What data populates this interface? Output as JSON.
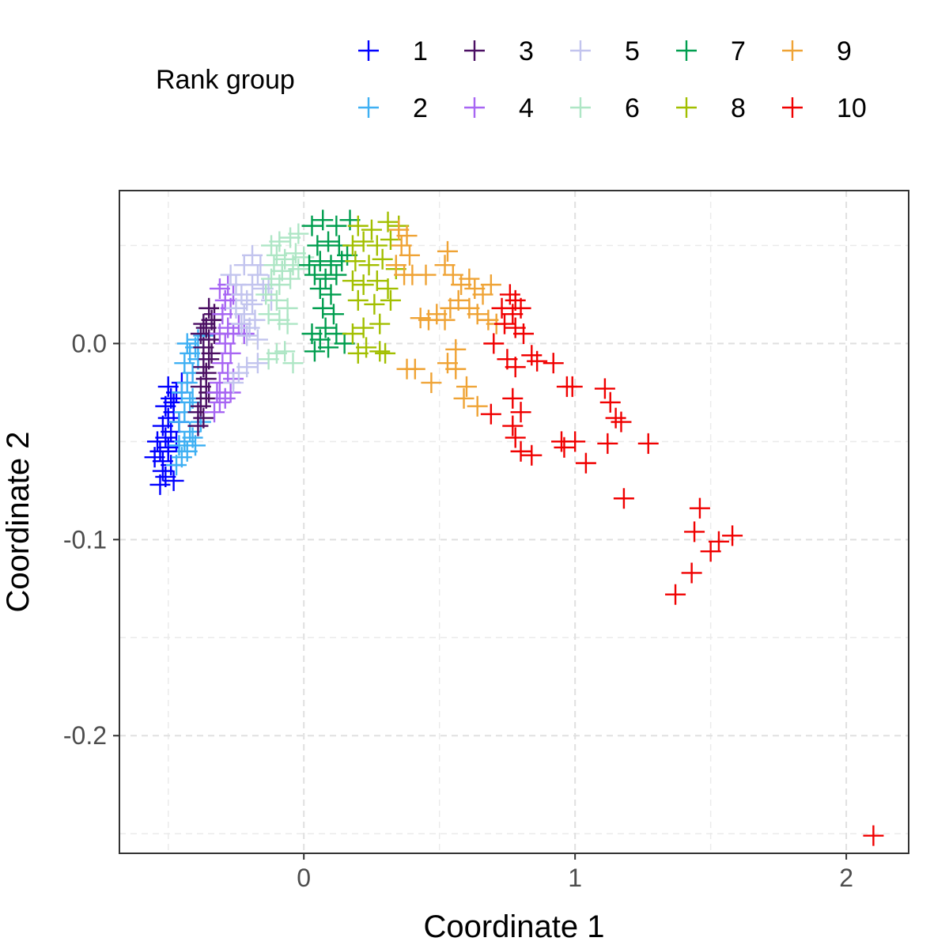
{
  "chart_data": {
    "type": "scatter",
    "xlabel": "Coordinate 1",
    "ylabel": "Coordinate 2",
    "xlim": [
      -0.68,
      2.23
    ],
    "ylim": [
      -0.26,
      0.078
    ],
    "x_ticks": [
      {
        "value": 0,
        "label": "0"
      },
      {
        "value": 1,
        "label": "1"
      },
      {
        "value": 2,
        "label": "2"
      }
    ],
    "y_ticks": [
      {
        "value": 0.0,
        "label": "0.0"
      },
      {
        "value": -0.1,
        "label": "-0.1"
      },
      {
        "value": -0.2,
        "label": "-0.2"
      }
    ],
    "grid": true,
    "marker": "plus",
    "legend": {
      "title": "Rank group",
      "position": "top"
    },
    "series": [
      {
        "name": "1",
        "color": "#0000ff",
        "points": [
          [
            -0.53,
            -0.072
          ],
          [
            -0.51,
            -0.068
          ],
          [
            -0.55,
            -0.058
          ],
          [
            -0.52,
            -0.06
          ],
          [
            -0.5,
            -0.055
          ],
          [
            -0.54,
            -0.05
          ],
          [
            -0.51,
            -0.048
          ],
          [
            -0.49,
            -0.045
          ],
          [
            -0.52,
            -0.042
          ],
          [
            -0.5,
            -0.038
          ],
          [
            -0.48,
            -0.035
          ],
          [
            -0.51,
            -0.032
          ],
          [
            -0.49,
            -0.028
          ],
          [
            -0.47,
            -0.025
          ],
          [
            -0.5,
            -0.022
          ],
          [
            -0.48,
            -0.03
          ],
          [
            -0.46,
            -0.04
          ],
          [
            -0.53,
            -0.055
          ],
          [
            -0.49,
            -0.062
          ],
          [
            -0.47,
            -0.05
          ],
          [
            -0.45,
            -0.02
          ],
          [
            -0.52,
            -0.065
          ],
          [
            -0.48,
            -0.07
          ],
          [
            -0.5,
            -0.053
          ]
        ]
      },
      {
        "name": "2",
        "color": "#3fb0f3",
        "points": [
          [
            -0.47,
            -0.062
          ],
          [
            -0.45,
            -0.058
          ],
          [
            -0.43,
            -0.055
          ],
          [
            -0.44,
            -0.05
          ],
          [
            -0.42,
            -0.045
          ],
          [
            -0.46,
            -0.04
          ],
          [
            -0.44,
            -0.035
          ],
          [
            -0.42,
            -0.03
          ],
          [
            -0.45,
            -0.025
          ],
          [
            -0.43,
            -0.02
          ],
          [
            -0.41,
            -0.015
          ],
          [
            -0.44,
            -0.01
          ],
          [
            -0.42,
            -0.005
          ],
          [
            -0.4,
            -0.002
          ],
          [
            -0.39,
            0.002
          ],
          [
            -0.43,
            0.0
          ],
          [
            -0.41,
            -0.048
          ],
          [
            -0.4,
            -0.052
          ],
          [
            -0.38,
            -0.04
          ],
          [
            -0.41,
            -0.028
          ],
          [
            -0.39,
            -0.008
          ],
          [
            -0.37,
            0.004
          ],
          [
            -0.46,
            -0.052
          ]
        ]
      },
      {
        "name": "3",
        "color": "#4b0f63",
        "points": [
          [
            -0.39,
            -0.042
          ],
          [
            -0.37,
            -0.038
          ],
          [
            -0.38,
            -0.032
          ],
          [
            -0.36,
            -0.028
          ],
          [
            -0.38,
            -0.022
          ],
          [
            -0.36,
            -0.018
          ],
          [
            -0.37,
            -0.012
          ],
          [
            -0.35,
            -0.008
          ],
          [
            -0.37,
            -0.002
          ],
          [
            -0.35,
            0.002
          ],
          [
            -0.36,
            0.008
          ],
          [
            -0.34,
            0.012
          ],
          [
            -0.35,
            0.018
          ],
          [
            -0.33,
            0.015
          ],
          [
            -0.37,
            0.01
          ],
          [
            -0.34,
            -0.005
          ],
          [
            -0.36,
            -0.015
          ],
          [
            -0.38,
            0.005
          ],
          [
            -0.33,
            0.005
          ],
          [
            -0.35,
            -0.025
          ],
          [
            -0.39,
            -0.035
          ]
        ]
      },
      {
        "name": "4",
        "color": "#a766f3",
        "points": [
          [
            -0.33,
            -0.035
          ],
          [
            -0.31,
            -0.03
          ],
          [
            -0.29,
            -0.028
          ],
          [
            -0.27,
            -0.025
          ],
          [
            -0.31,
            -0.02
          ],
          [
            -0.28,
            -0.015
          ],
          [
            -0.26,
            -0.018
          ],
          [
            -0.3,
            -0.01
          ],
          [
            -0.27,
            -0.005
          ],
          [
            -0.29,
            0.0
          ],
          [
            -0.31,
            0.005
          ],
          [
            -0.28,
            0.008
          ],
          [
            -0.26,
            0.005
          ],
          [
            -0.3,
            0.015
          ],
          [
            -0.27,
            0.018
          ],
          [
            -0.29,
            0.022
          ],
          [
            -0.31,
            0.028
          ],
          [
            -0.28,
            0.03
          ],
          [
            -0.24,
            0.01
          ],
          [
            -0.26,
            0.025
          ],
          [
            -0.22,
            0.005
          ],
          [
            -0.32,
            -0.025
          ]
        ]
      },
      {
        "name": "5",
        "color": "#c2c4ee",
        "points": [
          [
            -0.27,
            0.035
          ],
          [
            -0.25,
            0.03
          ],
          [
            -0.23,
            0.025
          ],
          [
            -0.21,
            0.022
          ],
          [
            -0.25,
            0.018
          ],
          [
            -0.22,
            0.015
          ],
          [
            -0.19,
            0.02
          ],
          [
            -0.23,
            0.01
          ],
          [
            -0.2,
            0.008
          ],
          [
            -0.18,
            0.012
          ],
          [
            -0.21,
            0.004
          ],
          [
            -0.17,
            0.002
          ],
          [
            -0.19,
            0.03
          ],
          [
            -0.17,
            0.035
          ],
          [
            -0.15,
            0.028
          ],
          [
            -0.22,
            0.04
          ],
          [
            -0.19,
            0.045
          ],
          [
            -0.16,
            0.04
          ],
          [
            -0.13,
            0.03
          ],
          [
            -0.24,
            -0.015
          ],
          [
            -0.21,
            -0.012
          ],
          [
            -0.17,
            -0.01
          ],
          [
            -0.26,
            -0.02
          ],
          [
            -0.12,
            0.022
          ]
        ]
      },
      {
        "name": "6",
        "color": "#aee6c5",
        "points": [
          [
            -0.12,
            0.05
          ],
          [
            -0.09,
            0.052
          ],
          [
            -0.05,
            0.054
          ],
          [
            -0.02,
            0.056
          ],
          [
            -0.1,
            0.045
          ],
          [
            -0.07,
            0.043
          ],
          [
            -0.03,
            0.046
          ],
          [
            -0.11,
            0.04
          ],
          [
            -0.08,
            0.037
          ],
          [
            -0.04,
            0.04
          ],
          [
            -0.12,
            0.033
          ],
          [
            -0.09,
            0.03
          ],
          [
            -0.05,
            0.033
          ],
          [
            -0.02,
            0.038
          ],
          [
            -0.14,
            0.025
          ],
          [
            -0.1,
            0.022
          ],
          [
            -0.06,
            0.018
          ],
          [
            -0.13,
            0.015
          ],
          [
            -0.09,
            0.012
          ],
          [
            -0.06,
            0.01
          ],
          [
            -0.13,
            -0.008
          ],
          [
            -0.1,
            -0.005
          ],
          [
            -0.07,
            -0.004
          ],
          [
            -0.04,
            -0.01
          ],
          [
            0.0,
            0.044
          ]
        ]
      },
      {
        "name": "7",
        "color": "#009e4f",
        "points": [
          [
            0.03,
            0.06
          ],
          [
            0.07,
            0.063
          ],
          [
            0.12,
            0.06
          ],
          [
            0.17,
            0.063
          ],
          [
            0.05,
            0.05
          ],
          [
            0.09,
            0.052
          ],
          [
            0.13,
            0.05
          ],
          [
            0.02,
            0.04
          ],
          [
            0.06,
            0.042
          ],
          [
            0.1,
            0.04
          ],
          [
            0.14,
            0.042
          ],
          [
            0.04,
            0.035
          ],
          [
            0.08,
            0.033
          ],
          [
            0.12,
            0.035
          ],
          [
            0.06,
            0.028
          ],
          [
            0.1,
            0.025
          ],
          [
            0.07,
            0.018
          ],
          [
            0.11,
            0.015
          ],
          [
            0.08,
            0.008
          ],
          [
            0.03,
            0.005
          ],
          [
            0.06,
            0.002
          ],
          [
            0.12,
            0.005
          ],
          [
            0.04,
            -0.004
          ],
          [
            0.09,
            -0.002
          ],
          [
            0.15,
            0.0
          ],
          [
            0.16,
            0.045
          ]
        ]
      },
      {
        "name": "8",
        "color": "#a2bf00",
        "points": [
          [
            0.2,
            0.06
          ],
          [
            0.25,
            0.058
          ],
          [
            0.31,
            0.062
          ],
          [
            0.35,
            0.06
          ],
          [
            0.18,
            0.05
          ],
          [
            0.22,
            0.052
          ],
          [
            0.27,
            0.05
          ],
          [
            0.32,
            0.053
          ],
          [
            0.19,
            0.042
          ],
          [
            0.24,
            0.04
          ],
          [
            0.29,
            0.043
          ],
          [
            0.34,
            0.038
          ],
          [
            0.18,
            0.032
          ],
          [
            0.22,
            0.03
          ],
          [
            0.27,
            0.032
          ],
          [
            0.31,
            0.028
          ],
          [
            0.2,
            0.022
          ],
          [
            0.26,
            0.02
          ],
          [
            0.32,
            0.022
          ],
          [
            0.28,
            0.01
          ],
          [
            0.22,
            0.008
          ],
          [
            0.18,
            0.005
          ],
          [
            0.23,
            -0.002
          ],
          [
            0.28,
            -0.004
          ],
          [
            0.3,
            -0.005
          ],
          [
            0.2,
            -0.005
          ]
        ]
      },
      {
        "name": "9",
        "color": "#efa335",
        "points": [
          [
            0.35,
            0.058
          ],
          [
            0.38,
            0.055
          ],
          [
            0.36,
            0.05
          ],
          [
            0.39,
            0.045
          ],
          [
            0.34,
            0.04
          ],
          [
            0.37,
            0.035
          ],
          [
            0.4,
            0.035
          ],
          [
            0.45,
            0.035
          ],
          [
            0.53,
            0.047
          ],
          [
            0.52,
            0.04
          ],
          [
            0.55,
            0.035
          ],
          [
            0.58,
            0.03
          ],
          [
            0.61,
            0.033
          ],
          [
            0.63,
            0.028
          ],
          [
            0.66,
            0.025
          ],
          [
            0.69,
            0.03
          ],
          [
            0.57,
            0.022
          ],
          [
            0.61,
            0.018
          ],
          [
            0.64,
            0.015
          ],
          [
            0.68,
            0.012
          ],
          [
            0.71,
            0.01
          ],
          [
            0.54,
            0.018
          ],
          [
            0.52,
            0.012
          ],
          [
            0.49,
            0.015
          ],
          [
            0.46,
            0.012
          ],
          [
            0.43,
            0.013
          ],
          [
            0.56,
            -0.003
          ],
          [
            0.53,
            -0.01
          ],
          [
            0.56,
            -0.013
          ],
          [
            0.41,
            -0.013
          ],
          [
            0.38,
            -0.013
          ],
          [
            0.47,
            -0.02
          ],
          [
            0.6,
            -0.022
          ],
          [
            0.59,
            -0.028
          ],
          [
            0.64,
            -0.032
          ]
        ]
      },
      {
        "name": "10",
        "color": "#f00000",
        "points": [
          [
            0.76,
            0.025
          ],
          [
            0.78,
            0.022
          ],
          [
            0.73,
            0.018
          ],
          [
            0.77,
            0.015
          ],
          [
            0.8,
            0.018
          ],
          [
            0.74,
            0.01
          ],
          [
            0.78,
            0.008
          ],
          [
            0.81,
            0.005
          ],
          [
            0.7,
            0.0
          ],
          [
            0.75,
            -0.008
          ],
          [
            0.78,
            -0.012
          ],
          [
            0.84,
            -0.006
          ],
          [
            0.86,
            -0.009
          ],
          [
            0.92,
            -0.01
          ],
          [
            0.97,
            -0.022
          ],
          [
            0.99,
            -0.022
          ],
          [
            1.11,
            -0.023
          ],
          [
            1.13,
            -0.03
          ],
          [
            1.15,
            -0.038
          ],
          [
            1.17,
            -0.04
          ],
          [
            0.77,
            -0.028
          ],
          [
            0.8,
            -0.035
          ],
          [
            0.69,
            -0.036
          ],
          [
            0.77,
            -0.042
          ],
          [
            0.78,
            -0.048
          ],
          [
            0.8,
            -0.055
          ],
          [
            0.84,
            -0.057
          ],
          [
            0.95,
            -0.05
          ],
          [
            0.96,
            -0.053
          ],
          [
            1.0,
            -0.05
          ],
          [
            1.04,
            -0.061
          ],
          [
            1.12,
            -0.051
          ],
          [
            1.27,
            -0.051
          ],
          [
            1.18,
            -0.079
          ],
          [
            1.37,
            -0.128
          ],
          [
            1.43,
            -0.117
          ],
          [
            1.44,
            -0.096
          ],
          [
            1.46,
            -0.084
          ],
          [
            1.5,
            -0.106
          ],
          [
            1.53,
            -0.101
          ],
          [
            1.58,
            -0.098
          ],
          [
            2.1,
            -0.251
          ]
        ]
      }
    ]
  }
}
